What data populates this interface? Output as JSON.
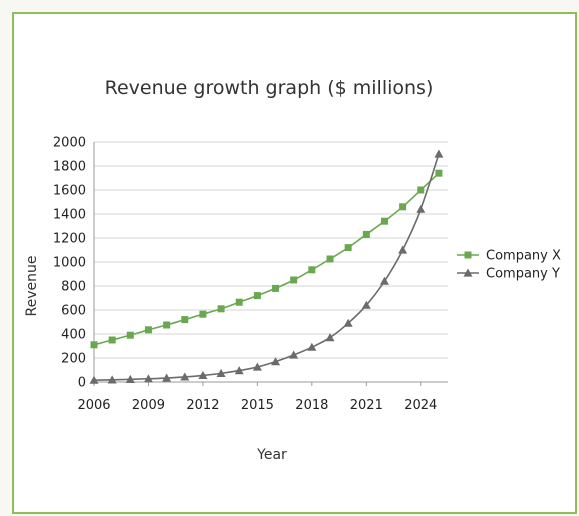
{
  "chart_data": {
    "type": "line",
    "title": "Revenue growth graph ($ millions)",
    "xlabel": "Year",
    "ylabel": "Revenue",
    "xlim": [
      2006,
      2025.5
    ],
    "ylim": [
      0,
      2000
    ],
    "x_ticks": [
      2006,
      2009,
      2012,
      2015,
      2018,
      2021,
      2024
    ],
    "x_tick_labels": [
      "2006",
      "2009",
      "2012",
      "2015",
      "2018",
      "2021",
      "2024"
    ],
    "y_ticks": [
      0,
      200,
      400,
      600,
      800,
      1000,
      1200,
      1400,
      1600,
      1800,
      2000
    ],
    "y_tick_labels": [
      "0",
      "200",
      "400",
      "600",
      "800",
      "1000",
      "1200",
      "1400",
      "1600",
      "1800",
      "2000"
    ],
    "grid": true,
    "legend_position": "right",
    "x": [
      2006,
      2007,
      2008,
      2009,
      2010,
      2011,
      2012,
      2013,
      2014,
      2015,
      2016,
      2017,
      2018,
      2019,
      2020,
      2021,
      2022,
      2023,
      2024,
      2025
    ],
    "series": [
      {
        "name": "Company X",
        "color": "#6aa84f",
        "marker": "square",
        "values": [
          310,
          350,
          390,
          435,
          475,
          520,
          565,
          610,
          665,
          720,
          780,
          850,
          935,
          1025,
          1120,
          1230,
          1340,
          1460,
          1600,
          1740
        ]
      },
      {
        "name": "Company Y",
        "color": "#6b6b6b",
        "marker": "triangle",
        "values": [
          15,
          18,
          22,
          27,
          33,
          42,
          55,
          72,
          95,
          125,
          170,
          225,
          290,
          370,
          490,
          640,
          840,
          1100,
          1440,
          1900
        ]
      }
    ]
  }
}
